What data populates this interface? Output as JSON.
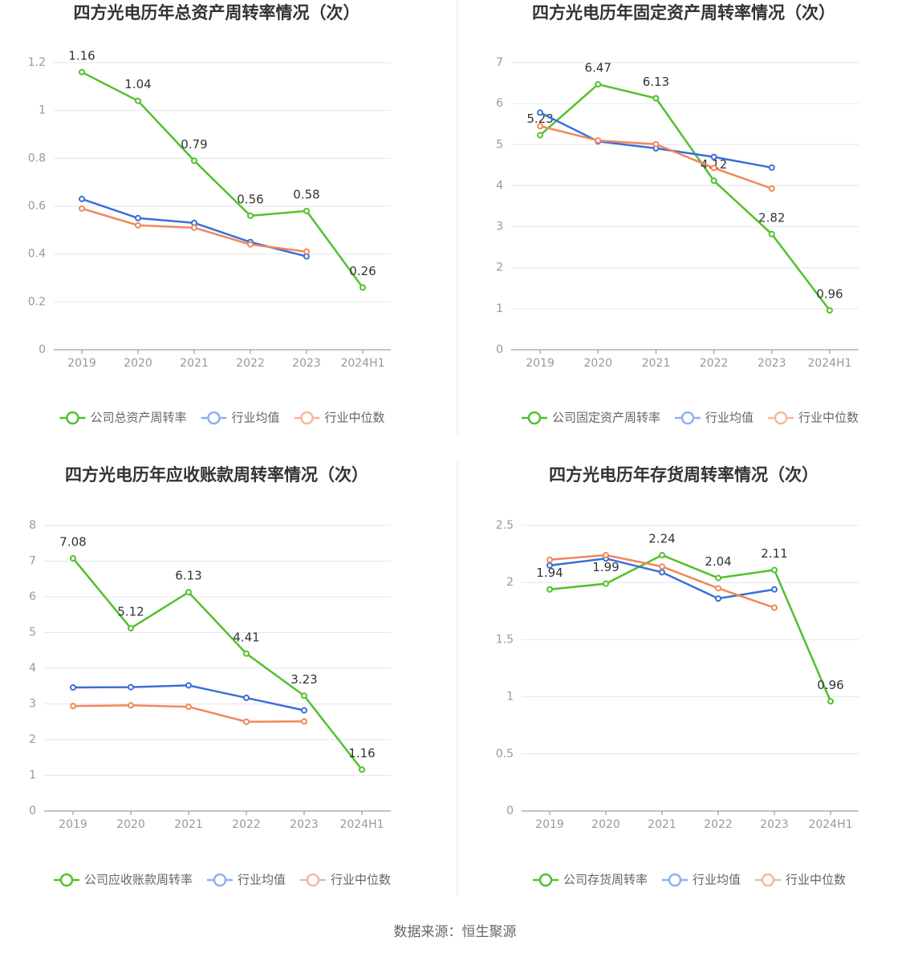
{
  "chart_data": [
    {
      "type": "line",
      "title": "四方光电历年总资产周转率情况（次）",
      "categories": [
        "2019",
        "2020",
        "2021",
        "2022",
        "2023",
        "2024H1"
      ],
      "series": [
        {
          "name": "公司总资产周转率",
          "color": "#52c12b",
          "values": [
            1.16,
            1.04,
            0.79,
            0.56,
            0.58,
            0.26
          ],
          "labels": true
        },
        {
          "name": "行业均值",
          "color": "#3b6fd8",
          "values": [
            0.63,
            0.55,
            0.53,
            0.45,
            0.39,
            null
          ]
        },
        {
          "name": "行业中位数",
          "color": "#f0885b",
          "values": [
            0.59,
            0.52,
            0.51,
            0.44,
            0.41,
            null
          ]
        }
      ],
      "ylim": [
        0,
        1.2
      ],
      "yticks": [
        0,
        0.2,
        0.4,
        0.6,
        0.8,
        1,
        1.2
      ],
      "grid": true
    },
    {
      "type": "line",
      "title": "四方光电历年固定资产周转率情况（次）",
      "categories": [
        "2019",
        "2020",
        "2021",
        "2022",
        "2023",
        "2024H1"
      ],
      "series": [
        {
          "name": "公司固定资产周转率",
          "color": "#52c12b",
          "values": [
            5.23,
            6.47,
            6.13,
            4.12,
            2.82,
            0.96
          ],
          "labels": true
        },
        {
          "name": "行业均值",
          "color": "#3b6fd8",
          "values": [
            5.78,
            5.08,
            4.91,
            4.7,
            4.44,
            null
          ]
        },
        {
          "name": "行业中位数",
          "color": "#f0885b",
          "values": [
            5.45,
            5.1,
            5.01,
            4.43,
            3.93,
            null
          ]
        }
      ],
      "ylim": [
        0,
        7
      ],
      "yticks": [
        0,
        1,
        2,
        3,
        4,
        5,
        6,
        7
      ],
      "grid": true
    },
    {
      "type": "line",
      "title": "四方光电历年应收账款周转率情况（次）",
      "categories": [
        "2019",
        "2020",
        "2021",
        "2022",
        "2023",
        "2024H1"
      ],
      "series": [
        {
          "name": "公司应收账款周转率",
          "color": "#52c12b",
          "values": [
            7.08,
            5.12,
            6.13,
            4.41,
            3.23,
            1.16
          ],
          "labels": true
        },
        {
          "name": "行业均值",
          "color": "#3b6fd8",
          "values": [
            3.46,
            3.47,
            3.52,
            3.17,
            2.82,
            null
          ]
        },
        {
          "name": "行业中位数",
          "color": "#f0885b",
          "values": [
            2.94,
            2.96,
            2.92,
            2.5,
            2.51,
            null
          ]
        }
      ],
      "ylim": [
        0,
        8
      ],
      "yticks": [
        0,
        1,
        2,
        3,
        4,
        5,
        6,
        7,
        8
      ],
      "grid": true
    },
    {
      "type": "line",
      "title": "四方光电历年存货周转率情况（次）",
      "categories": [
        "2019",
        "2020",
        "2021",
        "2022",
        "2023",
        "2024H1"
      ],
      "series": [
        {
          "name": "公司存货周转率",
          "color": "#52c12b",
          "values": [
            1.94,
            1.99,
            2.24,
            2.04,
            2.11,
            0.96
          ],
          "labels": true
        },
        {
          "name": "行业均值",
          "color": "#3b6fd8",
          "values": [
            2.15,
            2.21,
            2.09,
            1.86,
            1.94,
            null
          ]
        },
        {
          "name": "行业中位数",
          "color": "#f0885b",
          "values": [
            2.2,
            2.24,
            2.14,
            1.95,
            1.78,
            null
          ]
        }
      ],
      "ylim": [
        0,
        2.5
      ],
      "yticks": [
        0,
        0.5,
        1,
        1.5,
        2,
        2.5
      ],
      "grid": true
    }
  ],
  "source": "数据来源：恒生聚源"
}
